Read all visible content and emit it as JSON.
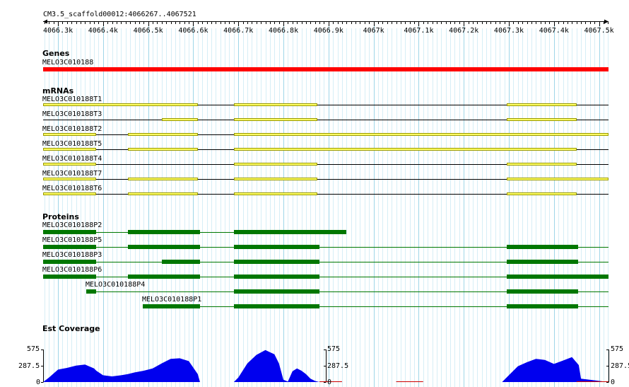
{
  "ruler": {
    "title": "CM3.5_scaffold00012:4066267..4067521",
    "start": 4066267,
    "end": 4067521,
    "ticks": [
      "4066.3k",
      "4066.4k",
      "4066.5k",
      "4066.6k",
      "4066.7k",
      "4066.8k",
      "4066.9k",
      "4067k",
      "4067.1k",
      "4067.2k",
      "4067.3k",
      "4067.4k",
      "4067.5k"
    ],
    "tick_values": [
      4066300,
      4066400,
      4066500,
      4066600,
      4066700,
      4066800,
      4066900,
      4067000,
      4067100,
      4067200,
      4067300,
      4067400,
      4067500
    ]
  },
  "colors": {
    "grid_major": "#9fd6e8",
    "grid_minor": "#d6eef6",
    "gene": "#ff0000",
    "mrna_fill": "#ffff66",
    "mrna_edge": "#999900",
    "protein": "#007700",
    "coverage": "#0000ee",
    "coverage_low": "#cc0000"
  },
  "genes": {
    "section_label": "Genes",
    "items": [
      {
        "label": "MELO3C010188",
        "start": 4066267,
        "end": 4067521
      }
    ]
  },
  "mrnas": {
    "section_label": "mRNAs",
    "items": [
      {
        "label": "MELO3C010188T1",
        "span": [
          4066267,
          4067521
        ],
        "exons": [
          [
            4066267,
            4066610
          ],
          [
            4066690,
            4066875
          ],
          [
            4067295,
            4067450
          ]
        ]
      },
      {
        "label": "MELO3C010188T3",
        "span": [
          4066267,
          4067521
        ],
        "exons": [
          [
            4066530,
            4066610
          ],
          [
            4066690,
            4066875
          ],
          [
            4067295,
            4067450
          ]
        ]
      },
      {
        "label": "MELO3C010188T2",
        "span": [
          4066267,
          4067521
        ],
        "exons": [
          [
            4066267,
            4066385
          ],
          [
            4066455,
            4066610
          ],
          [
            4066690,
            4067521
          ]
        ]
      },
      {
        "label": "MELO3C010188T5",
        "span": [
          4066267,
          4067521
        ],
        "exons": [
          [
            4066267,
            4066385
          ],
          [
            4066455,
            4066610
          ],
          [
            4066690,
            4067450
          ]
        ]
      },
      {
        "label": "MELO3C010188T4",
        "span": [
          4066267,
          4067521
        ],
        "exons": [
          [
            4066267,
            4066385
          ],
          [
            4066690,
            4066875
          ],
          [
            4067295,
            4067450
          ]
        ]
      },
      {
        "label": "MELO3C010188T7",
        "span": [
          4066267,
          4067521
        ],
        "exons": [
          [
            4066267,
            4066385
          ],
          [
            4066455,
            4066610
          ],
          [
            4066690,
            4066875
          ],
          [
            4067295,
            4067521
          ]
        ]
      },
      {
        "label": "MELO3C010188T6",
        "span": [
          4066267,
          4067521
        ],
        "exons": [
          [
            4066267,
            4066385
          ],
          [
            4066455,
            4066610
          ],
          [
            4066690,
            4066875
          ],
          [
            4067295,
            4067450
          ]
        ]
      }
    ]
  },
  "proteins": {
    "section_label": "Proteins",
    "items": [
      {
        "label": "MELO3C010188P2",
        "span": [
          4066267,
          4066940
        ],
        "blocks": [
          [
            4066267,
            4066385
          ],
          [
            4066455,
            4066615
          ],
          [
            4066690,
            4066940
          ]
        ]
      },
      {
        "label": "MELO3C010188P5",
        "span": [
          4066267,
          4067521
        ],
        "blocks": [
          [
            4066267,
            4066385
          ],
          [
            4066455,
            4066615
          ],
          [
            4066690,
            4066880
          ],
          [
            4067295,
            4067453
          ]
        ]
      },
      {
        "label": "MELO3C010188P3",
        "span": [
          4066267,
          4067521
        ],
        "blocks": [
          [
            4066267,
            4066385
          ],
          [
            4066530,
            4066615
          ],
          [
            4066690,
            4066880
          ],
          [
            4067295,
            4067453
          ]
        ]
      },
      {
        "label": "MELO3C010188P6",
        "span": [
          4066267,
          4067521
        ],
        "blocks": [
          [
            4066267,
            4066385
          ],
          [
            4066455,
            4066615
          ],
          [
            4066690,
            4066880
          ],
          [
            4067295,
            4067521
          ]
        ]
      },
      {
        "label": "MELO3C010188P4",
        "span": [
          4066362,
          4067521
        ],
        "blocks": [
          [
            4066362,
            4066385
          ],
          [
            4066690,
            4066880
          ],
          [
            4067295,
            4067453
          ]
        ]
      },
      {
        "label": "MELO3C010188P1",
        "span": [
          4066488,
          4067521
        ],
        "blocks": [
          [
            4066488,
            4066615
          ],
          [
            4066690,
            4066880
          ],
          [
            4067295,
            4067453
          ]
        ]
      }
    ]
  },
  "coverage": {
    "section_label": "Est Coverage",
    "axis_max": "575",
    "axis_mid": "287.5",
    "axis_min": "0",
    "chart_data": {
      "type": "area",
      "title": "",
      "ylim": [
        0,
        575
      ],
      "x": [
        4066267,
        4066280,
        4066300,
        4066320,
        4066340,
        4066360,
        4066380,
        4066385,
        4066400,
        4066420,
        4066440,
        4066455,
        4066470,
        4066490,
        4066510,
        4066530,
        4066550,
        4066570,
        4066590,
        4066610,
        4066615,
        4066690,
        4066700,
        4066720,
        4066740,
        4066760,
        4066780,
        4066790,
        4066800,
        4066810,
        4066820,
        4066830,
        4066840,
        4066850,
        4066860,
        4066870,
        4066875,
        4066880,
        4066885,
        4067285,
        4067300,
        4067320,
        4067340,
        4067360,
        4067380,
        4067400,
        4067420,
        4067440,
        4067455,
        4067460,
        4067521
      ],
      "values": [
        0,
        80,
        220,
        250,
        290,
        310,
        240,
        200,
        120,
        100,
        120,
        140,
        170,
        200,
        240,
        330,
        410,
        420,
        370,
        140,
        0,
        0,
        80,
        330,
        480,
        565,
        490,
        330,
        40,
        10,
        190,
        240,
        200,
        140,
        60,
        20,
        10,
        0,
        0,
        0,
        120,
        280,
        350,
        410,
        390,
        320,
        380,
        440,
        300,
        60,
        0
      ]
    }
  }
}
